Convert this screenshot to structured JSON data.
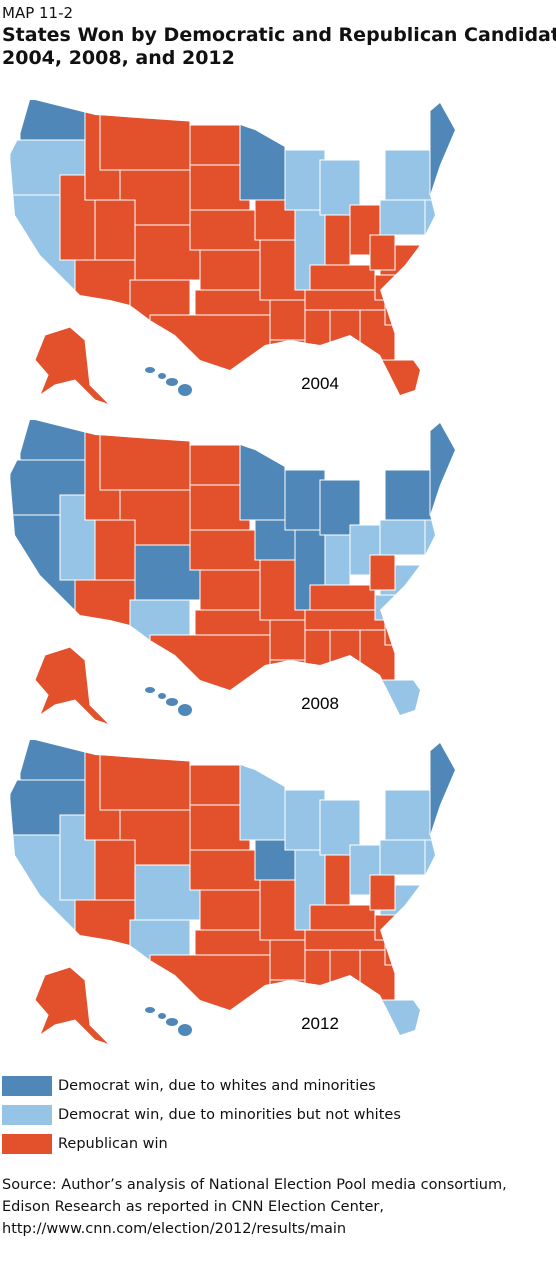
{
  "header": {
    "label": "MAP 11-2",
    "title": "States Won by Democratic and Republican Candidate",
    "subtitle": "2004, 2008, and 2012"
  },
  "maps": [
    {
      "year": "2004"
    },
    {
      "year": "2008"
    },
    {
      "year": "2012"
    }
  ],
  "legend": [
    {
      "label": "Democrat win, due to whites and minorities",
      "color": "#4f87b8"
    },
    {
      "label": "Democrat win, due to minorities but not whites",
      "color": "#95c4e6"
    },
    {
      "label": "Republican win",
      "color": "#e2512c"
    }
  ],
  "source": [
    "Source: Author’s analysis of National Election Pool media consortium,",
    "Edison Research as reported in CNN Election Center,",
    "http://www.cnn.com/election/2012/results/main"
  ]
}
